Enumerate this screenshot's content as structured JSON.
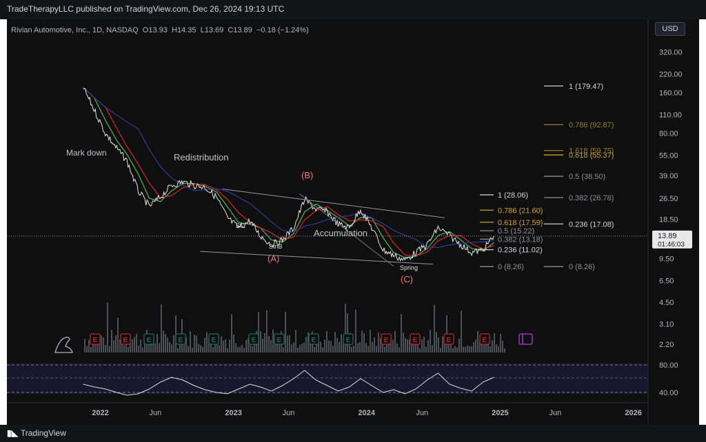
{
  "header": {
    "published": "TradeTherapyLLC published on TradingView.com, Dec 26, 2024 19:13 UTC"
  },
  "footer": {
    "brand": "TradingView"
  },
  "symbol": {
    "name": "Rivian Automotive, Inc., 1D, NASDAQ",
    "o_label": "O",
    "o_val": "13.93",
    "h_label": "H",
    "h_val": "14.35",
    "l_label": "L",
    "l_val": "13.69",
    "c_label": "C",
    "c_val": "13.89",
    "change": "−0.18 (−1.24%)"
  },
  "currency": "USD",
  "colors": {
    "background": "#0f0f0f",
    "price_line": "#e6e6e6",
    "ma_green": "#4caf50",
    "ma_red": "#c62828",
    "ma_blue": "#2c3a8c",
    "fib_white": "#d1d4dc",
    "fib_gold": "#c9a227",
    "fib_gray": "#8d8f96",
    "label_red": "#f07a7a",
    "earnings_red": "#b22a2a",
    "earnings_teal": "#1b6b5f",
    "earnings_purple": "#b03cd6",
    "current_price_bg": "#e8e8e8"
  },
  "chart_data": {
    "type": "line",
    "scale": "log",
    "price_axis_labels": [
      "320.00",
      "220.00",
      "160.00",
      "110.00",
      "80.00",
      "55.00",
      "39.00",
      "26.50",
      "18.50",
      "9.50",
      "6.50",
      "4.50",
      "3.10",
      "2.20"
    ],
    "time_axis_labels": [
      "2022",
      "Jun",
      "2023",
      "Jun",
      "2024",
      "Jun",
      "2025",
      "Jun",
      "2026"
    ],
    "rsi_axis_labels": [
      "80.00",
      "40.00"
    ],
    "current_price": "13.89",
    "countdown": "01:46:03",
    "price_series": {
      "x": [
        "2021-11",
        "2021-12",
        "2022-01",
        "2022-02",
        "2022-03",
        "2022-04",
        "2022-05",
        "2022-06",
        "2022-07",
        "2022-08",
        "2022-09",
        "2022-10",
        "2022-11",
        "2022-12",
        "2023-01",
        "2023-02",
        "2023-03",
        "2023-04",
        "2023-05",
        "2023-06",
        "2023-07",
        "2023-08",
        "2023-09",
        "2023-10",
        "2023-11",
        "2023-12",
        "2024-01",
        "2024-02",
        "2024-03",
        "2024-04",
        "2024-05",
        "2024-06",
        "2024-07",
        "2024-08",
        "2024-09",
        "2024-10",
        "2024-11",
        "2024-12"
      ],
      "y": [
        175,
        120,
        80,
        62,
        50,
        30,
        23,
        27,
        33,
        35,
        33,
        32,
        27,
        19,
        16,
        18,
        14,
        12,
        13,
        16,
        26,
        22,
        21,
        17,
        16,
        22,
        16,
        11,
        10,
        9.2,
        10.5,
        12,
        16,
        14,
        12,
        10.5,
        11,
        13.89
      ]
    },
    "rsi_series": {
      "y": [
        52,
        48,
        45,
        40,
        36,
        38,
        45,
        55,
        62,
        58,
        50,
        44,
        40,
        38,
        45,
        52,
        48,
        42,
        50,
        60,
        72,
        58,
        50,
        42,
        48,
        60,
        50,
        40,
        44,
        38,
        45,
        58,
        68,
        52,
        46,
        42,
        55,
        62
      ]
    },
    "fib_left": [
      {
        "label": "1 (28.06)",
        "value": 28.06,
        "style": "white"
      },
      {
        "label": "0.786 (21.60)",
        "value": 21.6,
        "style": "gold"
      },
      {
        "label": "0.618 (17.59)",
        "value": 17.59,
        "style": "gold"
      },
      {
        "label": "0.5 (15.22)",
        "value": 15.22,
        "style": "gray"
      },
      {
        "label": "0.382 (13.18)",
        "value": 13.18,
        "style": "gray"
      },
      {
        "label": "0.236 (11.02)",
        "value": 11.02,
        "style": "white"
      },
      {
        "label": "0 (8.26)",
        "value": 8.26,
        "style": "gray"
      }
    ],
    "fib_right": [
      {
        "label": "1 (179.47)",
        "value": 179.47,
        "style": "white"
      },
      {
        "label": "0.786 (92.87)",
        "value": 92.87,
        "style": "gold_dim"
      },
      {
        "label": "1.618 (59.75)",
        "value": 59.75,
        "style": "gold_dim"
      },
      {
        "label": "0.618 (55.37)",
        "value": 55.37,
        "style": "gold"
      },
      {
        "label": "0.5 (38.50)",
        "value": 38.5,
        "style": "gray"
      },
      {
        "label": "0.382 (26.78)",
        "value": 26.78,
        "style": "gray"
      },
      {
        "label": "0.236 (17.08)",
        "value": 17.08,
        "style": "white"
      },
      {
        "label": "0 (8.26)",
        "value": 8.26,
        "style": "gray"
      }
    ],
    "annotations": [
      {
        "text": "Mark down",
        "kind": "phase"
      },
      {
        "text": "Redistribution",
        "kind": "phase"
      },
      {
        "text": "Accumulation",
        "kind": "phase"
      },
      {
        "text": "(B)",
        "kind": "wave"
      },
      {
        "text": "(A)",
        "kind": "wave"
      },
      {
        "text": "(C)",
        "kind": "wave"
      },
      {
        "text": "SC",
        "kind": "event"
      },
      {
        "text": "StnB",
        "kind": "event"
      },
      {
        "text": "Spring",
        "kind": "event"
      }
    ],
    "earnings_markers": [
      {
        "letter": "E",
        "tone": "red"
      },
      {
        "letter": "E",
        "tone": "red"
      },
      {
        "letter": "E",
        "tone": "teal"
      },
      {
        "letter": "E",
        "tone": "teal"
      },
      {
        "letter": "E",
        "tone": "teal"
      },
      {
        "letter": "E",
        "tone": "teal"
      },
      {
        "letter": "E",
        "tone": "teal"
      },
      {
        "letter": "E",
        "tone": "teal"
      },
      {
        "letter": "E",
        "tone": "teal"
      },
      {
        "letter": "E",
        "tone": "red"
      },
      {
        "letter": "E",
        "tone": "red"
      },
      {
        "letter": "E",
        "tone": "red"
      },
      {
        "letter": "E",
        "tone": "red"
      },
      {
        "letter": "E",
        "tone": "purple"
      }
    ],
    "grid": false,
    "legend": "none"
  }
}
